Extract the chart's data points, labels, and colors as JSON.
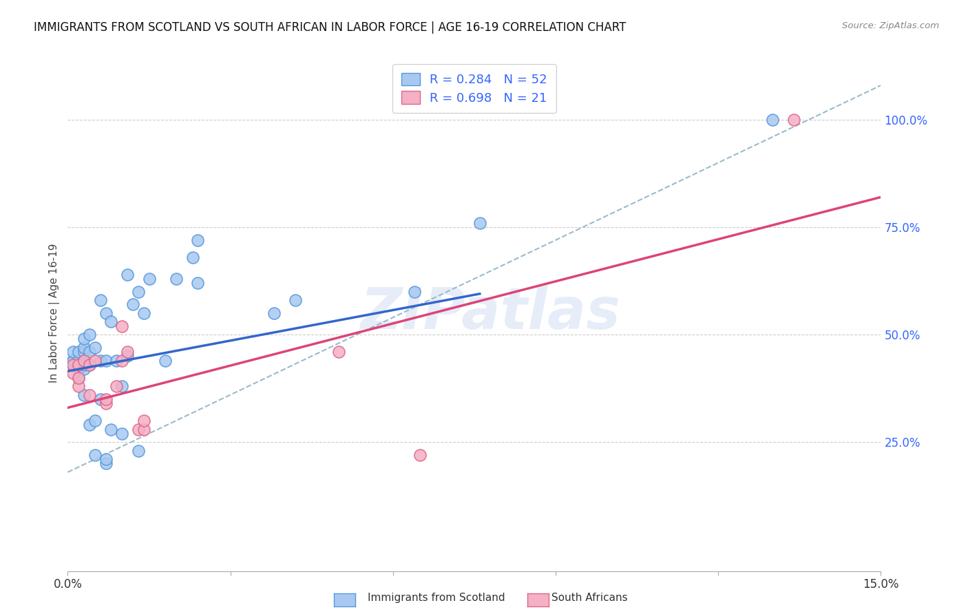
{
  "title": "IMMIGRANTS FROM SCOTLAND VS SOUTH AFRICAN IN LABOR FORCE | AGE 16-19 CORRELATION CHART",
  "source": "Source: ZipAtlas.com",
  "ylabel": "In Labor Force | Age 16-19",
  "xlim": [
    0.0,
    0.15
  ],
  "ylim": [
    -0.05,
    1.15
  ],
  "scotland_color": "#a8c8f0",
  "scotland_edge_color": "#5599dd",
  "sa_color": "#f5b0c5",
  "sa_edge_color": "#dd6688",
  "scotland_R": 0.284,
  "scotland_N": 52,
  "sa_R": 0.698,
  "sa_N": 21,
  "legend_color": "#3366ff",
  "watermark": "ZIPatlas",
  "watermark_color": "#c8d8f0",
  "scotland_line_color": "#3366cc",
  "sa_line_color": "#dd4477",
  "dashed_line_color": "#99bbcc",
  "scotland_line_x0": 0.0,
  "scotland_line_y0": 0.415,
  "scotland_line_x1": 0.076,
  "scotland_line_y1": 0.595,
  "sa_line_x0": 0.0,
  "sa_line_y0": 0.33,
  "sa_line_x1": 0.15,
  "sa_line_y1": 0.82,
  "dash_line_x0": 0.0,
  "dash_line_y0": 0.18,
  "dash_line_x1": 0.15,
  "dash_line_y1": 1.08,
  "scotland_x": [
    0.001,
    0.001,
    0.001,
    0.001,
    0.002,
    0.002,
    0.002,
    0.002,
    0.002,
    0.003,
    0.003,
    0.003,
    0.003,
    0.003,
    0.003,
    0.003,
    0.004,
    0.004,
    0.004,
    0.004,
    0.005,
    0.005,
    0.005,
    0.006,
    0.006,
    0.006,
    0.007,
    0.007,
    0.007,
    0.007,
    0.008,
    0.008,
    0.009,
    0.01,
    0.01,
    0.011,
    0.011,
    0.012,
    0.013,
    0.013,
    0.014,
    0.015,
    0.018,
    0.02,
    0.023,
    0.024,
    0.024,
    0.038,
    0.042,
    0.064,
    0.076,
    0.13
  ],
  "scotland_y": [
    0.43,
    0.44,
    0.44,
    0.46,
    0.4,
    0.42,
    0.43,
    0.44,
    0.46,
    0.36,
    0.42,
    0.43,
    0.44,
    0.46,
    0.47,
    0.49,
    0.29,
    0.43,
    0.46,
    0.5,
    0.22,
    0.3,
    0.47,
    0.35,
    0.44,
    0.58,
    0.2,
    0.21,
    0.44,
    0.55,
    0.28,
    0.53,
    0.44,
    0.27,
    0.38,
    0.45,
    0.64,
    0.57,
    0.23,
    0.6,
    0.55,
    0.63,
    0.44,
    0.63,
    0.68,
    0.62,
    0.72,
    0.55,
    0.58,
    0.6,
    0.76,
    1.0
  ],
  "sa_x": [
    0.001,
    0.001,
    0.002,
    0.002,
    0.002,
    0.003,
    0.004,
    0.004,
    0.005,
    0.007,
    0.007,
    0.009,
    0.01,
    0.01,
    0.011,
    0.013,
    0.014,
    0.014,
    0.05,
    0.065,
    0.134
  ],
  "sa_y": [
    0.41,
    0.43,
    0.38,
    0.4,
    0.43,
    0.44,
    0.36,
    0.43,
    0.44,
    0.34,
    0.35,
    0.38,
    0.44,
    0.52,
    0.46,
    0.28,
    0.28,
    0.3,
    0.46,
    0.22,
    1.0
  ],
  "background_color": "#ffffff",
  "grid_color": "#cccccc"
}
